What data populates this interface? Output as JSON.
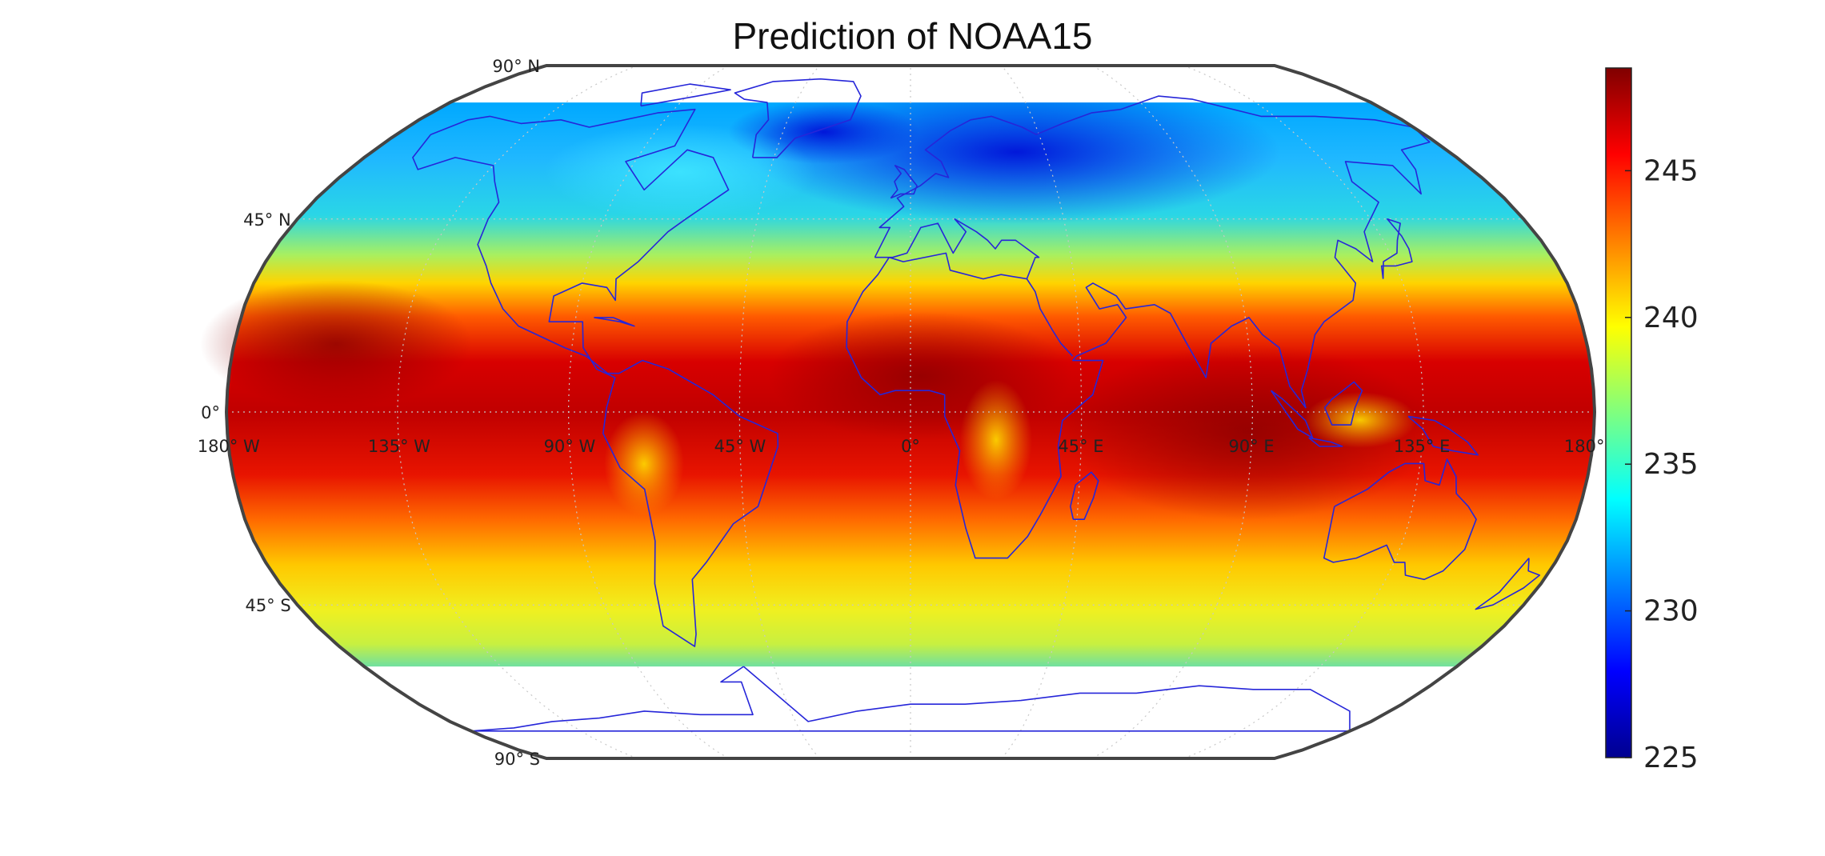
{
  "title": "Prediction of NOAA15",
  "map": {
    "projection": "robinson",
    "lat_labels": [
      "90° N",
      "45° N",
      "0°",
      "45° S",
      "90° S"
    ],
    "lon_labels": [
      "180° W",
      "135° W",
      "90° W",
      "45° W",
      "0°",
      "45° E",
      "90° E",
      "135° E",
      "180°"
    ],
    "data_extent": {
      "lat_min": -60,
      "lat_max": 75
    },
    "field_palette": "jet",
    "coastline_color": "#2626d9",
    "graticule_color": "#c8c8c8",
    "frame_color": "#444444"
  },
  "colorbar": {
    "min": 225,
    "max": 248.5,
    "ticks": [
      "225",
      "230",
      "235",
      "240",
      "245"
    ],
    "palette": "jet"
  }
}
